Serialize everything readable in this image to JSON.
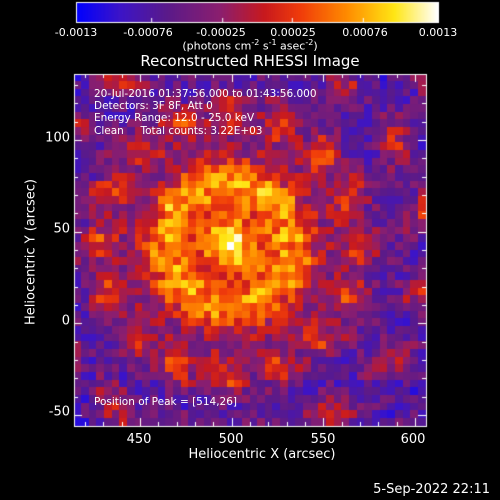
{
  "colorbar": {
    "ticks": [
      "-0.0013",
      "-0.00076",
      "-0.00025",
      "0.00025",
      "0.00076",
      "0.0013"
    ],
    "units_pre": "(photons cm",
    "units_exp1": "-2",
    "units_mid": " s",
    "units_exp2": "-1",
    "units_post": " asec",
    "units_exp3": "-2",
    "units_close": ")",
    "range": [
      -0.0013,
      0.0013
    ]
  },
  "title": "Reconstructed RHESSI Image",
  "annotations": {
    "time": "20-Jul-2016 01:37:56.000 to 01:43:56.000",
    "detectors": "Detectors: 3F 8F, Att 0",
    "energy": "Energy Range: 12.0 - 25.0 keV",
    "clean": "Clean     Total counts: 3.22E+03",
    "peak": "Position of Peak = [514,26]"
  },
  "footer": "5-Sep-2022 22:11",
  "chart_data": {
    "type": "heatmap",
    "title": "Reconstructed RHESSI Image",
    "xlabel": "Heliocentric X (arcsec)",
    "ylabel": "Heliocentric Y (arcsec)",
    "xlim": [
      414,
      606
    ],
    "ylim": [
      -56,
      136
    ],
    "xticks": [
      "450",
      "500",
      "550",
      "600"
    ],
    "xtick_values": [
      450,
      500,
      550,
      600
    ],
    "yticks": [
      "-50",
      "0",
      "50",
      "100"
    ],
    "ytick_values": [
      -50,
      0,
      50,
      100
    ],
    "peak": [
      514,
      26
    ],
    "colormap": "blue-purple-red-yellow-white",
    "colormap_colors": [
      "#0000ff",
      "#5a1a8a",
      "#8a2080",
      "#d01818",
      "#ff8000",
      "#ffff00",
      "#ffffff"
    ]
  }
}
